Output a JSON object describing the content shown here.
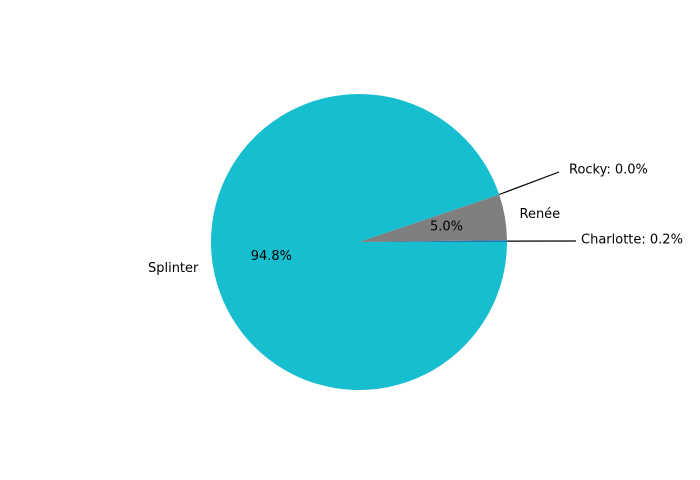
{
  "chart_data": {
    "type": "pie",
    "title": "",
    "slices": [
      {
        "label": "Charlotte",
        "value": 0.2,
        "pct_label": "0.2%",
        "outer_text": "Charlotte: 0.2%",
        "color": "#1f77b4",
        "callout": true
      },
      {
        "label": "Renée",
        "value": 5.0,
        "pct_label": "5.0%",
        "outer_text": "Renée",
        "color": "#7f7f7f",
        "callout": false
      },
      {
        "label": "Rocky",
        "value": 0.0,
        "pct_label": "0.0%",
        "outer_text": "Rocky: 0.0%",
        "color": "#ff7f0e",
        "callout": true
      },
      {
        "label": "Splinter",
        "value": 94.8,
        "pct_label": "94.8%",
        "outer_text": "Splinter",
        "color": "#17becf",
        "callout": false
      }
    ],
    "start_angle_deg": 0,
    "direction": "counterclockwise",
    "legend": "none"
  }
}
